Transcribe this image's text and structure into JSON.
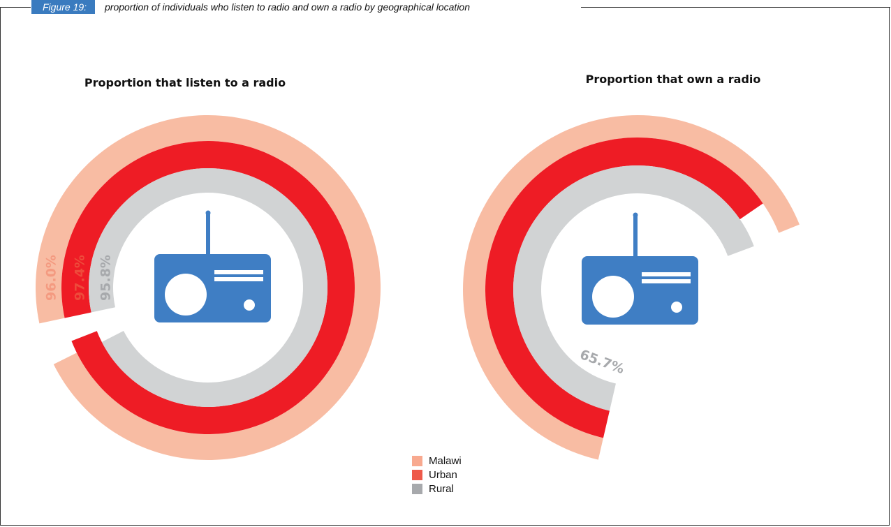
{
  "figure": {
    "label": "Figure 19:",
    "caption": "proportion of individuals who listen to radio and own a radio by geographical location"
  },
  "colors": {
    "malawi": "#F8BCA3",
    "urban": "#EE1C25",
    "rural": "#D1D3D4",
    "urban_text": "#EE4B3B",
    "malawi_text": "#F49A80",
    "rural_text": "#A7A9AC",
    "radio": "#3F7EC4",
    "figure_label_bg": "#3A7BBF"
  },
  "legend": [
    {
      "name": "Malawi",
      "color": "#F8A98F"
    },
    {
      "name": "Urban",
      "color": "#EE5A4A"
    },
    {
      "name": "Rural",
      "color": "#A7A9AC"
    }
  ],
  "chart_data": [
    {
      "type": "radial_bar",
      "title": "Proportion that listen to a radio",
      "series": [
        {
          "name": "Malawi",
          "value": 96.0,
          "label": "96.0%"
        },
        {
          "name": "Urban",
          "value": 97.4,
          "label": "97.4%"
        },
        {
          "name": "Rural",
          "value": 95.8,
          "label": "95.8%"
        }
      ]
    },
    {
      "type": "radial_bar",
      "title": "Proportion that own a radio",
      "series": [
        {
          "name": "Malawi",
          "value": 65.3,
          "label": "65.3%"
        },
        {
          "name": "Urban",
          "value": 61.8,
          "label": "61.8%"
        },
        {
          "name": "Rural",
          "value": 65.7,
          "label": "65.7%"
        }
      ]
    }
  ]
}
